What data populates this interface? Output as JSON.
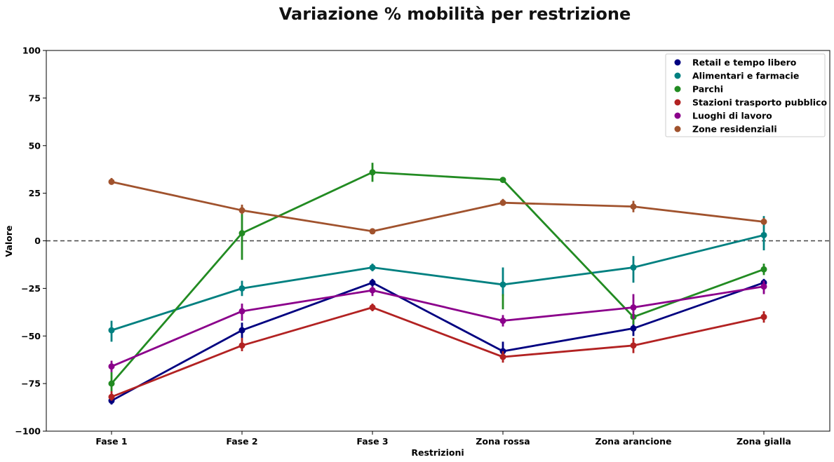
{
  "chart_data": {
    "type": "line",
    "title": "Variazione % mobilità per restrizione",
    "xlabel": "Restrizioni",
    "ylabel": "Valore",
    "categories": [
      "Fase 1",
      "Fase 2",
      "Fase 3",
      "Zona rossa",
      "Zona arancione",
      "Zona gialla"
    ],
    "ylim": [
      -100,
      100
    ],
    "yticks": [
      -100,
      -75,
      -50,
      -25,
      0,
      25,
      50,
      75,
      100
    ],
    "ytick_labels": [
      "−100",
      "−75",
      "−50",
      "−25",
      "0",
      "25",
      "50",
      "75",
      "100"
    ],
    "reference_line": 0,
    "legend_position": "top-right",
    "series": [
      {
        "name": "Retail e tempo libero",
        "color": "#000080",
        "values": [
          -84,
          -47,
          -22,
          -58,
          -46,
          -22
        ],
        "ci": [
          [
            -86,
            -81
          ],
          [
            -51,
            -43
          ],
          [
            -24,
            -20
          ],
          [
            -61,
            -53
          ],
          [
            -50,
            -42
          ],
          [
            -24,
            -20
          ]
        ]
      },
      {
        "name": "Alimentari e farmacie",
        "color": "#008080",
        "values": [
          -47,
          -25,
          -14,
          -23,
          -14,
          3
        ],
        "ci": [
          [
            -53,
            -42
          ],
          [
            -29,
            -21
          ],
          [
            -16,
            -12
          ],
          [
            -29,
            -14
          ],
          [
            -22,
            -8
          ],
          [
            -5,
            13
          ]
        ]
      },
      {
        "name": "Parchi",
        "color": "#228B22",
        "values": [
          -75,
          4,
          36,
          32,
          -40,
          -15
        ],
        "ci": [
          [
            -79,
            -69
          ],
          [
            -10,
            18
          ],
          [
            31,
            41
          ],
          [
            -36,
            -28
          ],
          [
            -44,
            -37
          ],
          [
            -18,
            -12
          ]
        ]
      },
      {
        "name": "Stazioni trasporto pubblico",
        "color": "#B22222",
        "values": [
          -82,
          -55,
          -35,
          -61,
          -55,
          -40
        ],
        "ci": [
          [
            -84,
            -79
          ],
          [
            -58,
            -51
          ],
          [
            -37,
            -33
          ],
          [
            -64,
            -58
          ],
          [
            -59,
            -51
          ],
          [
            -43,
            -37
          ]
        ]
      },
      {
        "name": "Luoghi di lavoro",
        "color": "#8B008B",
        "values": [
          -66,
          -37,
          -26,
          -42,
          -35,
          -24
        ],
        "ci": [
          [
            -69,
            -63
          ],
          [
            -42,
            -33
          ],
          [
            -29,
            -24
          ],
          [
            -45,
            -39
          ],
          [
            -41,
            -28
          ],
          [
            -28,
            -21
          ]
        ]
      },
      {
        "name": "Zone residenziali",
        "color": "#A0522D",
        "values": [
          31,
          16,
          5,
          20,
          18,
          10
        ],
        "ci": [
          [
            30,
            33
          ],
          [
            14,
            19
          ],
          [
            4,
            6
          ],
          [
            19,
            22
          ],
          [
            15,
            21
          ],
          [
            9,
            12
          ]
        ]
      }
    ]
  }
}
